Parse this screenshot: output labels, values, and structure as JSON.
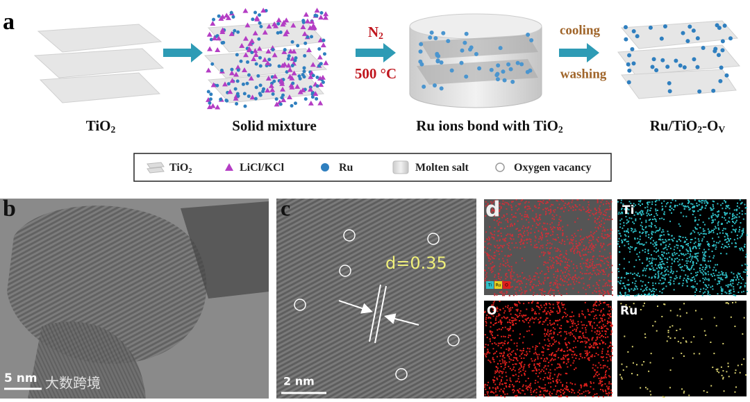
{
  "panel_a": {
    "label": "a",
    "steps": [
      [
        "TiO",
        "2"
      ],
      [
        "Solid mixture"
      ],
      [
        "Ru ions bond with TiO",
        "2"
      ],
      [
        "Ru/TiO",
        "2",
        "-O",
        "V"
      ]
    ],
    "step1": {
      "above": [
        "N",
        "2"
      ],
      "below": "500 °C"
    },
    "step3": {
      "above": "cooling",
      "below": "washing"
    },
    "legend": [
      [
        "TiO",
        "2"
      ],
      [
        "LiCl/KCl"
      ],
      [
        "Ru"
      ],
      [
        "Molten salt"
      ],
      [
        "Oxygen vacancy"
      ]
    ]
  },
  "panel_b": {
    "label": "b",
    "scale_bar": "5 nm",
    "watermark": "大数跨境"
  },
  "panel_c": {
    "label": "c",
    "d_spacing": "d=0.35",
    "scale_bar": "2 nm"
  },
  "panel_d": {
    "label": "d",
    "inset_legend": [
      "Ti",
      "Ru",
      "O"
    ],
    "maps": [
      "Ti",
      "O",
      "Ru"
    ]
  }
}
